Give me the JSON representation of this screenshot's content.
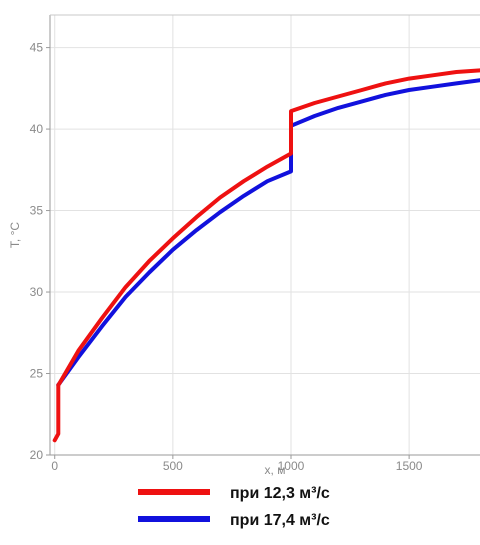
{
  "chart_data": {
    "type": "line",
    "title": "",
    "xlabel": "x, м",
    "ylabel": "T, °C",
    "xlim": [
      -20,
      1800
    ],
    "ylim": [
      20,
      47
    ],
    "xticks": [
      0,
      500,
      1000,
      1500
    ],
    "xtick_labels": [
      "0",
      "500",
      "1000",
      "1500"
    ],
    "yticks": [
      20,
      25,
      30,
      35,
      40,
      45
    ],
    "ytick_labels": [
      "20",
      "25",
      "30",
      "35",
      "40",
      "45"
    ],
    "grid": true,
    "legend_position": "bottom",
    "series": [
      {
        "name": "при 12,3 м³/с",
        "color": "#ee1111",
        "x": [
          0,
          15,
          15,
          20,
          100,
          200,
          300,
          400,
          500,
          600,
          700,
          800,
          900,
          1000,
          1000,
          1100,
          1200,
          1300,
          1400,
          1500,
          1600,
          1700,
          1800
        ],
        "y": [
          20.9,
          21.3,
          24.3,
          24.4,
          26.4,
          28.4,
          30.3,
          31.9,
          33.3,
          34.6,
          35.8,
          36.8,
          37.7,
          38.5,
          41.1,
          41.6,
          42.0,
          42.4,
          42.8,
          43.1,
          43.3,
          43.5,
          43.6
        ]
      },
      {
        "name": "при 17,4 м³/с",
        "color": "#1111dd",
        "x": [
          15,
          20,
          100,
          200,
          300,
          400,
          500,
          600,
          700,
          800,
          900,
          1000,
          1000,
          1100,
          1200,
          1300,
          1400,
          1500,
          1600,
          1700,
          1800
        ],
        "y": [
          24.3,
          24.4,
          26.0,
          27.9,
          29.7,
          31.2,
          32.6,
          33.8,
          34.9,
          35.9,
          36.8,
          37.4,
          40.2,
          40.8,
          41.3,
          41.7,
          42.1,
          42.4,
          42.6,
          42.8,
          43.0
        ]
      }
    ]
  }
}
